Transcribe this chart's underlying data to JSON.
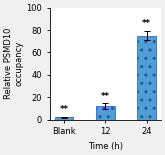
{
  "categories": [
    "Blank",
    "12",
    "24"
  ],
  "values": [
    2.0,
    12.0,
    75.0
  ],
  "errors": [
    0.8,
    2.5,
    4.0
  ],
  "bar_color": "#4F9FD4",
  "bar_edge_color": "#2255AA",
  "xlabel": "Time (h)",
  "ylabel": "Relative PSMD10\noccupancy",
  "ylim": [
    0,
    100
  ],
  "yticks": [
    0,
    20,
    40,
    60,
    80,
    100
  ],
  "significance": [
    "**",
    "**",
    "**"
  ],
  "figure_bg": "#F0F0F0",
  "axes_bg": "#FFFFFF",
  "title_fontsize": 7,
  "label_fontsize": 6,
  "tick_fontsize": 6,
  "bar_width": 0.45,
  "hatch": ".."
}
